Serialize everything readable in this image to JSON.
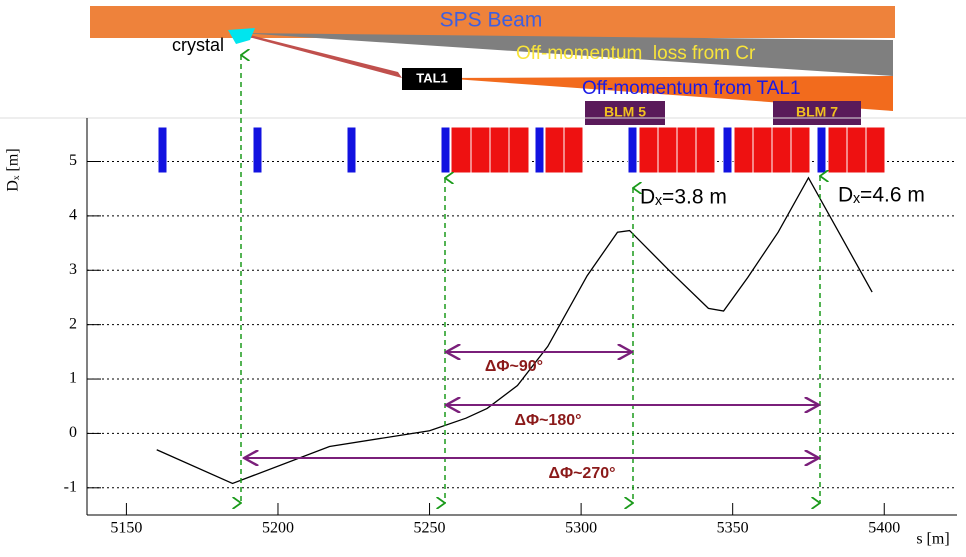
{
  "chart_data": {
    "type": "line",
    "x": [
      5160,
      5185,
      5217,
      5250,
      5262,
      5269,
      5279,
      5289,
      5302,
      5312,
      5316,
      5329,
      5342,
      5347,
      5355,
      5365,
      5375,
      5385,
      5396
    ],
    "values": [
      -0.3,
      -0.92,
      -0.24,
      0.05,
      0.28,
      0.46,
      0.88,
      1.6,
      2.9,
      3.7,
      3.73,
      3.0,
      2.3,
      2.25,
      2.87,
      3.7,
      4.7,
      3.7,
      2.6
    ],
    "color": "#000000",
    "xlim": [
      5137,
      5424
    ],
    "ylim": [
      -1.5,
      5.8
    ],
    "xticks": [
      5150,
      5200,
      5250,
      5300,
      5350,
      5400
    ],
    "yticks": [
      -1,
      0,
      1,
      2,
      3,
      4,
      5
    ],
    "grid": true,
    "xlabel": "s [m]",
    "ylabel": "Dₓ [m]",
    "annotations": [
      "SPS Beam",
      "crystal",
      "Off-momentum  loss from Cr",
      "TAL1",
      "Off-momentum from TAL1",
      "BLM 5",
      "BLM 7",
      "Dₓ=3.8 m",
      "Dₓ=4.6 m",
      "ΔΦ~90°",
      "ΔΦ~180°",
      "ΔΦ~270°"
    ]
  }
}
